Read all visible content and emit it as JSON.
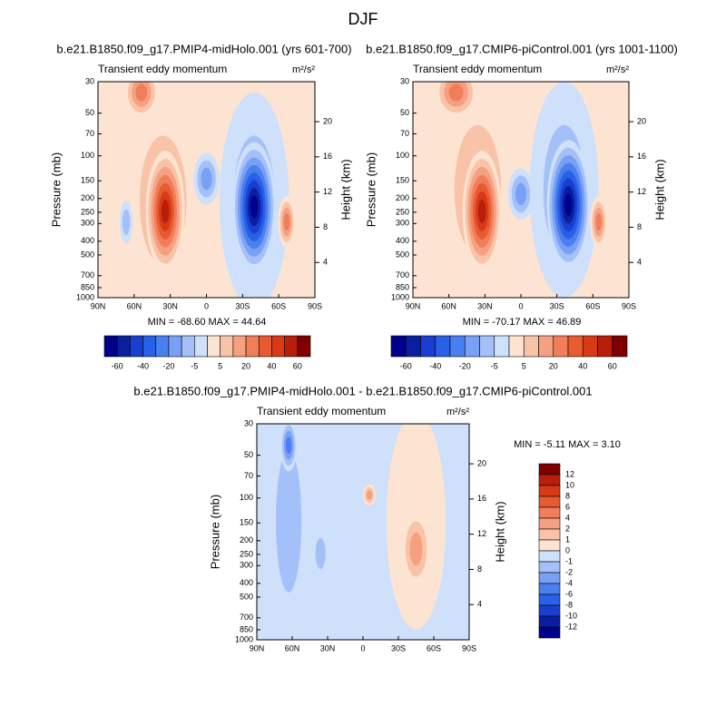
{
  "title": "DJF",
  "panels": [
    {
      "title": "b.e21.B1850.f09_g17.PMIP4-midHolo.001 (yrs 601-700)",
      "subtitle": "Transient eddy momentum",
      "units": "m²/s²",
      "y_label": "Pressure (mb)",
      "y2_label": "Height (km)",
      "min_max": "MIN = -68.60  MAX =  44.64",
      "x_ticks": [
        "90N",
        "60N",
        "30N",
        "0",
        "30S",
        "60S",
        "90S"
      ],
      "pressure_ticks": [
        30,
        50,
        70,
        100,
        150,
        200,
        250,
        300,
        400,
        500,
        700,
        850,
        1000
      ],
      "height_ticks": [
        20,
        16,
        12,
        8,
        4
      ]
    },
    {
      "title": "b.e21.B1850.f09_g17.CMIP6-piControl.001 (yrs 1001-1100)",
      "subtitle": "Transient eddy momentum",
      "units": "m²/s²",
      "y_label": "Pressure (mb)",
      "y2_label": "Height (km)",
      "min_max": "MIN = -70.17  MAX =  46.89",
      "x_ticks": [
        "90N",
        "60N",
        "30N",
        "0",
        "30S",
        "60S",
        "90S"
      ],
      "pressure_ticks": [
        30,
        50,
        70,
        100,
        150,
        200,
        250,
        300,
        400,
        500,
        700,
        850,
        1000
      ],
      "height_ticks": [
        20,
        16,
        12,
        8,
        4
      ]
    },
    {
      "title": "b.e21.B1850.f09_g17.PMIP4-midHolo.001 - b.e21.B1850.f09_g17.CMIP6-piControl.001",
      "subtitle": "Transient eddy momentum",
      "units": "m²/s²",
      "y_label": "Pressure (mb)",
      "y2_label": "Height (km)",
      "min_max": "MIN = -5.11  MAX =   3.10",
      "x_ticks": [
        "90N",
        "60N",
        "30N",
        "0",
        "30S",
        "60S",
        "90S"
      ],
      "pressure_ticks": [
        30,
        50,
        70,
        100,
        150,
        200,
        250,
        300,
        400,
        500,
        700,
        850,
        1000
      ],
      "height_ticks": [
        20,
        16,
        12,
        8,
        4
      ]
    }
  ],
  "colorbar": {
    "labels": [
      "-60",
      "-40",
      "-20",
      "-5",
      "5",
      "20",
      "40",
      "60"
    ],
    "colors": [
      "#00008b",
      "#0a1fa0",
      "#1a3fd0",
      "#2860e8",
      "#4a7ff0",
      "#7aa0f5",
      "#a4c0f8",
      "#cfe0fb",
      "#fde4d2",
      "#f9c3a8",
      "#f5a080",
      "#f07e58",
      "#e85a30",
      "#d83a18",
      "#b81f0a",
      "#800000"
    ]
  },
  "diff_colorbar": {
    "labels": [
      "12",
      "10",
      "8",
      "6",
      "4",
      "2",
      "1",
      "0",
      "-1",
      "-2",
      "-4",
      "-6",
      "-8",
      "-10",
      "-12"
    ]
  }
}
